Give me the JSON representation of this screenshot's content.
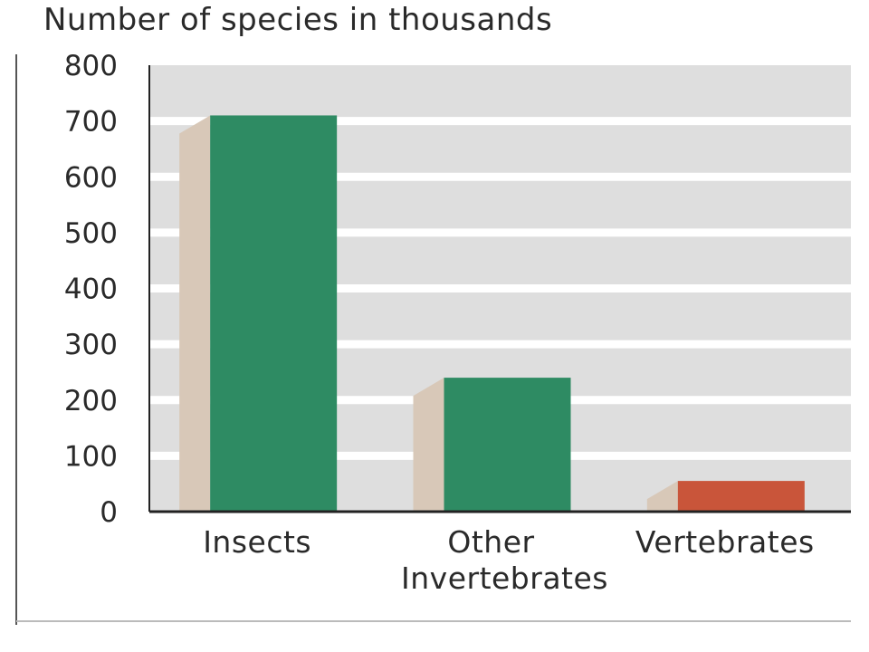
{
  "chart_data": {
    "type": "bar",
    "title": "Number of species in thousands",
    "xlabel": "",
    "ylabel": "",
    "categories": [
      [
        "Insects"
      ],
      [
        "Other",
        "Invertebrates"
      ],
      [
        "Vertebrates"
      ]
    ],
    "values": [
      710,
      240,
      55
    ],
    "ylim": [
      0,
      800
    ],
    "yticks": [
      0,
      100,
      200,
      300,
      400,
      500,
      600,
      700,
      800
    ],
    "grid": true,
    "legend": "none",
    "colors": {
      "bar_default": "#2e8b63",
      "bar_highlight": "#c9553a",
      "bar_side": "#d8c8b8",
      "plot_background": "#dedede",
      "gridline": "#ffffff",
      "axis": "#222222"
    },
    "highlight_index": 2
  }
}
